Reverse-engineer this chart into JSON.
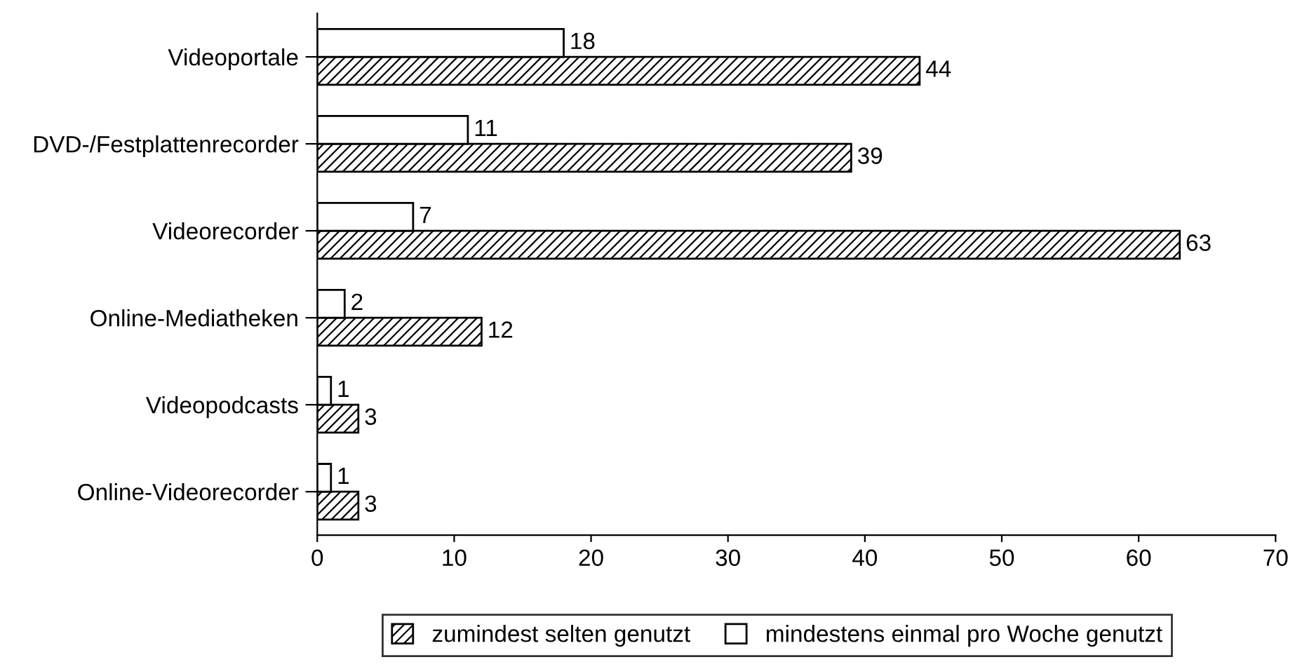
{
  "chart_data": {
    "type": "bar",
    "orientation": "horizontal",
    "categories": [
      "Videoportale",
      "DVD-/Festplattenrecorder",
      "Videorecorder",
      "Online-Mediatheken",
      "Videopodcasts",
      "Online-Videorecorder"
    ],
    "series": [
      {
        "name": "zumindest selten genutzt",
        "color": "#000000",
        "values": [
          44,
          39,
          63,
          12,
          3,
          3
        ]
      },
      {
        "name": "mindestens einmal pro Woche genutzt",
        "color": "#ffffff",
        "values": [
          18,
          11,
          7,
          2,
          1,
          1
        ]
      }
    ],
    "xlim": [
      0,
      70
    ],
    "xticks": [
      0,
      10,
      20,
      30,
      40,
      50,
      60,
      70
    ],
    "data_labels": true,
    "grid": false,
    "legend": "bottom"
  }
}
